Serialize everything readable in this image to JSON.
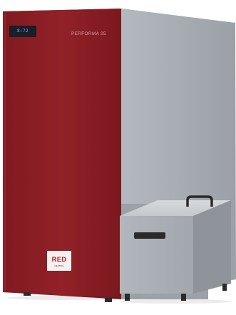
{
  "product": {
    "model_label": "PERFORMA 25",
    "display_text": "8:72",
    "badge_text": "RED",
    "badge_subtext": "HEATING"
  },
  "colors": {
    "boiler_front": "#8f1f25",
    "boiler_side": "#9aa0a8",
    "hopper_body": "#a9aeb5",
    "background": "#ffffff"
  }
}
